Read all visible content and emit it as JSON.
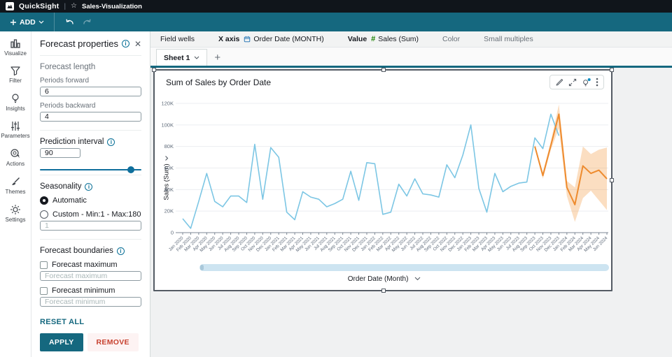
{
  "topbar": {
    "app_name": "QuickSight",
    "analysis_name": "Sales-Visualization",
    "divider": "|"
  },
  "toolbar": {
    "add_label": "ADD"
  },
  "rail": {
    "items": [
      {
        "id": "visualize",
        "label": "Visualize"
      },
      {
        "id": "filter",
        "label": "Filter"
      },
      {
        "id": "insights",
        "label": "Insights"
      },
      {
        "id": "parameters",
        "label": "Parameters"
      },
      {
        "id": "actions",
        "label": "Actions"
      },
      {
        "id": "themes",
        "label": "Themes"
      },
      {
        "id": "settings",
        "label": "Settings"
      }
    ]
  },
  "panel": {
    "title": "Forecast properties",
    "close_glyph": "✕",
    "forecast_length": {
      "heading": "Forecast length",
      "periods_forward_label": "Periods forward",
      "periods_forward_value": "6",
      "periods_backward_label": "Periods backward",
      "periods_backward_value": "4"
    },
    "prediction_interval": {
      "heading": "Prediction interval",
      "value": "90",
      "slider_percent": 86
    },
    "seasonality": {
      "heading": "Seasonality",
      "automatic_label": "Automatic",
      "custom_label": "Custom - Min:1 - Max:180",
      "custom_placeholder": "1",
      "selected": "Automatic"
    },
    "boundaries": {
      "heading": "Forecast boundaries",
      "max_label": "Forecast maximum",
      "max_placeholder": "Forecast maximum",
      "max_checked": false,
      "min_label": "Forecast minimum",
      "min_placeholder": "Forecast minimum",
      "min_checked": false
    },
    "reset_label": "RESET ALL",
    "apply_label": "APPLY",
    "remove_label": "REMOVE"
  },
  "field_wells": {
    "label": "Field wells",
    "x_axis_label": "X axis",
    "x_axis_field": "Order Date (MONTH)",
    "value_label": "Value",
    "value_field": "Sales (Sum)",
    "hash_glyph": "#",
    "color_label": "Color",
    "small_multiples_label": "Small multiples"
  },
  "sheet_bar": {
    "tab_label": "Sheet 1",
    "add_glyph": "+"
  },
  "visual": {
    "title": "Sum of Sales by Order Date",
    "y_axis_title": "Sales (Sum)",
    "x_axis_title": "Order Date (Month)"
  },
  "chart_data": {
    "type": "line",
    "title": "Sum of Sales by Order Date",
    "xlabel": "Order Date (Month)",
    "ylabel": "Sales (Sum)",
    "values_unit": "thousands",
    "ylim": [
      0,
      120
    ],
    "ytick_labels": [
      "0",
      "20K",
      "40K",
      "60K",
      "80K",
      "100K",
      "120K"
    ],
    "grid": true,
    "legend": "none",
    "x": [
      "Jan 2020",
      "Feb 2020",
      "Mar 2020",
      "Apr 2020",
      "May 2020",
      "Jun 2020",
      "Jul 2020",
      "Aug 2020",
      "Sep 2020",
      "Oct 2020",
      "Nov 2020",
      "Dec 2020",
      "Jan 2021",
      "Feb 2021",
      "Mar 2021",
      "Apr 2021",
      "May 2021",
      "Jun 2021",
      "Jul 2021",
      "Aug 2021",
      "Sep 2021",
      "Oct 2021",
      "Nov 2021",
      "Dec 2021",
      "Jan 2022",
      "Feb 2022",
      "Mar 2022",
      "Apr 2022",
      "May 2022",
      "Jun 2022",
      "Jul 2022",
      "Aug 2022",
      "Sep 2022",
      "Oct 2022",
      "Nov 2022",
      "Dec 2022",
      "Jan 2023",
      "Feb 2023",
      "Mar 2023",
      "Apr 2023",
      "May 2023",
      "Jun 2023",
      "Jul 2023",
      "Aug 2023",
      "Sep 2023",
      "Oct 2023",
      "Nov 2023",
      "Dec 2023",
      "Jan 2024",
      "Feb 2024",
      "Mar 2024",
      "Apr 2024",
      "May 2024",
      "Jun 2024"
    ],
    "series": [
      {
        "name": "Sales (Sum)",
        "role": "actual",
        "color": "#7cc6e4",
        "start_index": 0,
        "values": [
          13,
          4,
          29,
          55,
          29,
          24,
          34,
          34,
          28,
          82,
          31,
          79,
          70,
          19,
          12,
          38,
          33,
          31,
          24,
          27,
          31,
          57,
          30,
          65,
          64,
          17,
          19,
          45,
          34,
          50,
          36,
          35,
          33,
          63,
          51,
          72,
          100,
          41,
          19,
          55,
          38,
          43,
          46,
          47,
          88,
          78,
          110,
          90
        ]
      },
      {
        "name": "Forecast",
        "role": "forecast",
        "color": "#ee8b2e",
        "start_index": 44,
        "values": [
          80,
          53,
          81,
          110,
          42,
          26,
          62,
          55,
          58,
          50
        ]
      },
      {
        "name": "Prediction interval (90%)",
        "role": "band",
        "color": "rgba(244,151,63,0.32)",
        "start_index": 44,
        "upper": [
          82,
          56,
          85,
          119,
          48,
          42,
          80,
          73,
          77,
          79
        ],
        "lower": [
          78,
          50,
          77,
          97,
          34,
          10,
          32,
          39,
          30,
          21
        ]
      }
    ]
  }
}
